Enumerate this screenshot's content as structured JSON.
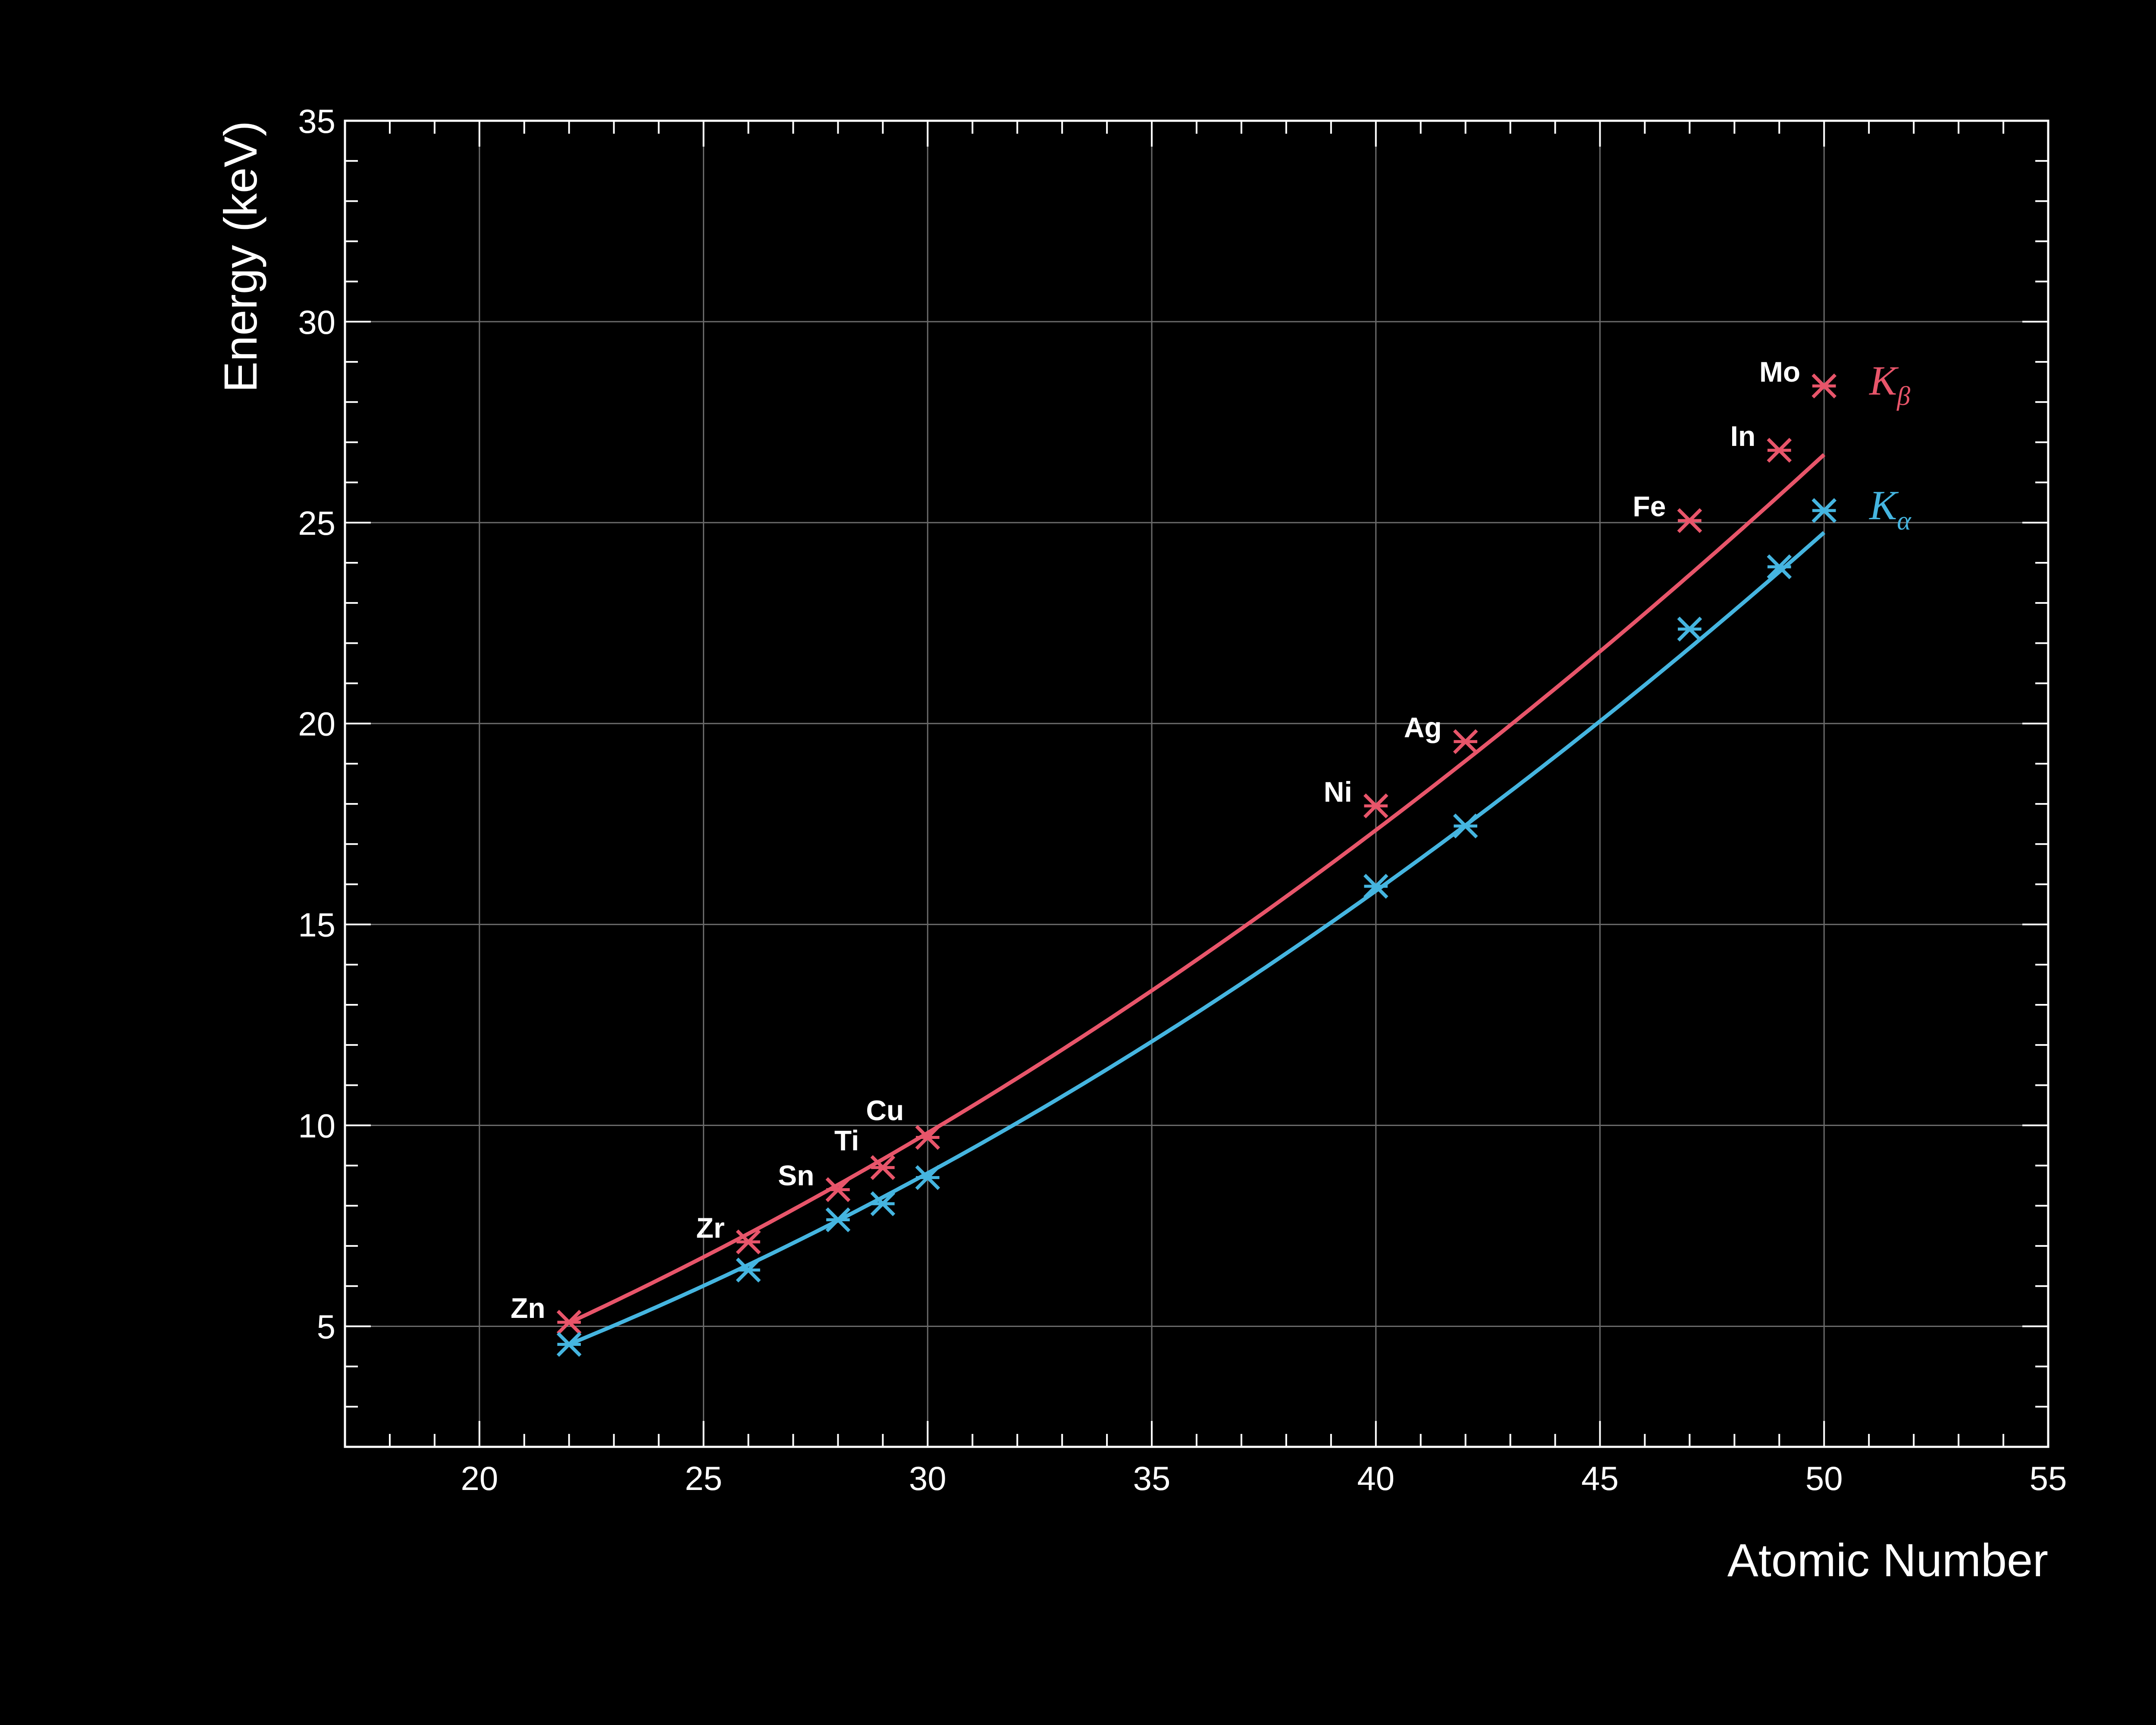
{
  "chart_data": {
    "type": "line",
    "title": "",
    "xlabel": "Atomic Number",
    "ylabel": "Energy (keV)",
    "xlim": [
      17,
      55
    ],
    "ylim": [
      2,
      35
    ],
    "xticks": [
      20,
      25,
      30,
      35,
      40,
      45,
      50,
      55
    ],
    "yticks": [
      5,
      10,
      15,
      20,
      25,
      30,
      35
    ],
    "x_minor_step": 1,
    "y_minor_step": 1,
    "grid": true,
    "background": "#000000",
    "series": [
      {
        "name": "K",
        "subscript": "β",
        "color": "#e8556a",
        "marker": "asterisk",
        "points": [
          {
            "x": 22,
            "y": 5.1,
            "label": "Zn"
          },
          {
            "x": 26,
            "y": 7.1,
            "label": "Zr"
          },
          {
            "x": 28,
            "y": 8.4,
            "label": "Sn"
          },
          {
            "x": 29,
            "y": 8.95,
            "label": "Ti"
          },
          {
            "x": 30,
            "y": 9.7,
            "label": "Cu"
          },
          {
            "x": 40,
            "y": 17.95,
            "label": "Ni"
          },
          {
            "x": 42,
            "y": 19.55,
            "label": "Ag"
          },
          {
            "x": 47,
            "y": 25.05,
            "label": "Fe"
          },
          {
            "x": 49,
            "y": 26.8,
            "label": "In"
          },
          {
            "x": 50,
            "y": 28.4,
            "label": "Mo"
          }
        ]
      },
      {
        "name": "K",
        "subscript": "α",
        "color": "#45b5e0",
        "marker": "asterisk",
        "points": [
          {
            "x": 22,
            "y": 4.55
          },
          {
            "x": 26,
            "y": 6.4
          },
          {
            "x": 28,
            "y": 7.65
          },
          {
            "x": 29,
            "y": 8.05
          },
          {
            "x": 30,
            "y": 8.7
          },
          {
            "x": 40,
            "y": 15.95
          },
          {
            "x": 42,
            "y": 17.45
          },
          {
            "x": 47,
            "y": 22.35
          },
          {
            "x": 49,
            "y": 23.9
          },
          {
            "x": 50,
            "y": 25.3
          }
        ]
      }
    ],
    "fit_curves": [
      {
        "series": "beta",
        "x_range": [
          22,
          50
        ],
        "coeffs": [
          0.00905,
          0.12,
          -1.933
        ]
      },
      {
        "series": "alpha",
        "x_range": [
          22,
          50
        ],
        "coeffs": [
          0.00946,
          0.0403,
          -0.9125
        ]
      }
    ]
  }
}
